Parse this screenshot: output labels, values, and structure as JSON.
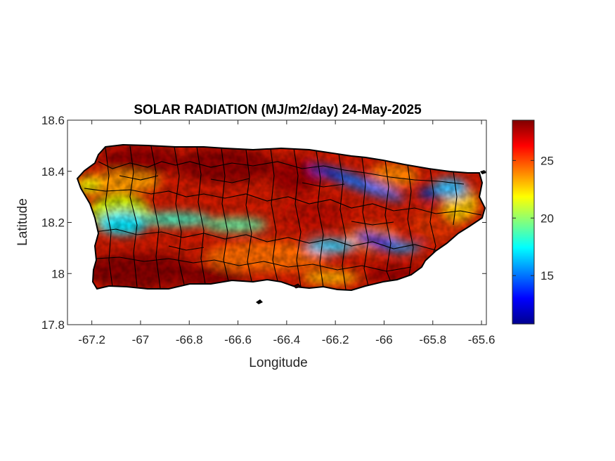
{
  "figure": {
    "title": "SOLAR RADIATION (MJ/m2/day) 24-May-2025",
    "xlabel": "Longitude",
    "ylabel": "Latitude"
  },
  "chart_data": {
    "type": "heatmap",
    "title": "SOLAR RADIATION (MJ/m2/day) 24-May-2025",
    "xlabel": "Longitude",
    "ylabel": "Latitude",
    "xlim": [
      -67.3,
      -65.58
    ],
    "ylim": [
      17.8,
      18.6
    ],
    "x_ticks": [
      -67.2,
      -67,
      -66.8,
      -66.6,
      -66.4,
      -66.2,
      -66,
      -65.8,
      -65.6
    ],
    "x_tick_labels": [
      "-67.2",
      "-67",
      "-66.8",
      "-66.6",
      "-66.4",
      "-66.2",
      "-66",
      "-65.8",
      "-65.6"
    ],
    "y_ticks": [
      17.8,
      18,
      18.2,
      18.4,
      18.6
    ],
    "y_tick_labels": [
      "17.8",
      "18",
      "18.2",
      "18.4",
      "18.6"
    ],
    "colorbar": {
      "colormap": "jet",
      "range": [
        10.8,
        28.5
      ],
      "ticks": [
        15,
        20,
        25
      ],
      "tick_labels": [
        "15",
        "20",
        "25"
      ]
    },
    "grid": false,
    "region": "Puerto Rico (municipality boundaries)",
    "features": [
      {
        "description": "high radiation (dark red)",
        "value": 28,
        "lon": -67.0,
        "lat": 17.98
      },
      {
        "description": "high radiation (dark red)",
        "value": 28,
        "lon": -66.75,
        "lat": 18.42
      },
      {
        "description": "low radiation band (blue)",
        "value": 12,
        "lon": -66.02,
        "lat": 18.12
      },
      {
        "description": "low radiation band (blue)",
        "value": 13,
        "lon": -66.15,
        "lat": 18.36
      },
      {
        "description": "low radiation (cyan)",
        "value": 17,
        "lon": -67.12,
        "lat": 18.2
      },
      {
        "description": "low radiation (cyan)",
        "value": 16,
        "lon": -65.72,
        "lat": 18.36
      }
    ]
  }
}
